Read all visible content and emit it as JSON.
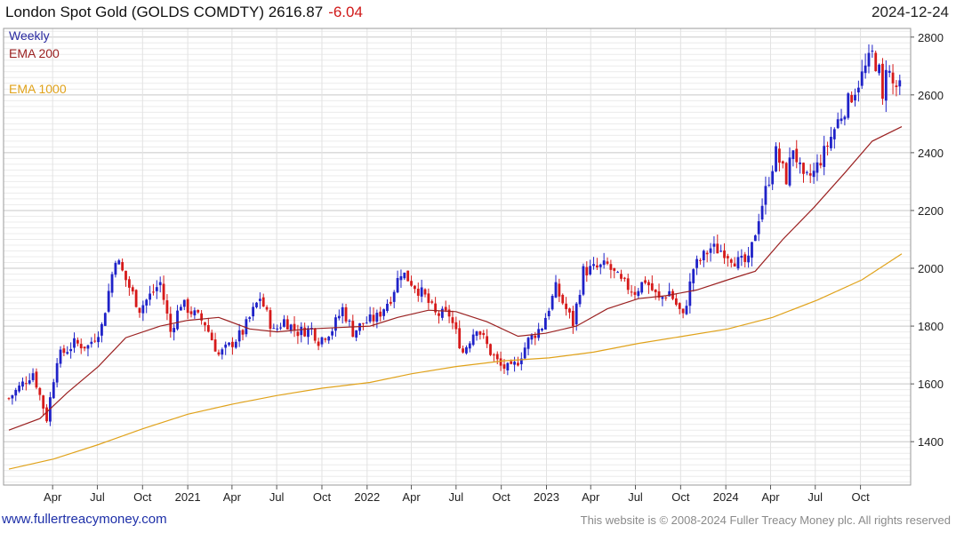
{
  "header": {
    "title": "London Spot Gold (GOLDS COMDTY) 2616.87",
    "change": "-6.04",
    "date": "2024-12-24"
  },
  "legend": {
    "weekly": "Weekly",
    "ema200": "EMA 200",
    "ema1000": "EMA 1000"
  },
  "footer": {
    "link": "www.fullertreacymoney.com",
    "copyright": "This website is © 2008-2024 Fuller Treacy Money plc. All rights reserved"
  },
  "colors": {
    "up": "#1f22c8",
    "down": "#d61a1a",
    "ema200": "#9b2121",
    "ema1000": "#e0a21a",
    "grid": "#d8d8d8"
  },
  "chart_data": {
    "type": "candlestick",
    "title": "London Spot Gold (GOLDS COMDTY) 2616.87",
    "frequency": "Weekly",
    "y_axis": {
      "side": "right",
      "ylim": [
        1250,
        2830
      ],
      "ticks": [
        1400,
        1600,
        1800,
        2000,
        2200,
        2400,
        2600,
        2800
      ]
    },
    "x_axis": {
      "ticks": [
        "Apr",
        "Jul",
        "Oct",
        "2021",
        "Apr",
        "Jul",
        "Oct",
        "2022",
        "Apr",
        "Jul",
        "Oct",
        "2023",
        "Apr",
        "Jul",
        "Oct",
        "2024",
        "Apr",
        "Jul",
        "Oct"
      ],
      "tick_dates": [
        "2020-04-01",
        "2020-07-01",
        "2020-10-01",
        "2021-01-01",
        "2021-04-01",
        "2021-07-01",
        "2021-10-01",
        "2022-01-01",
        "2022-04-01",
        "2022-07-01",
        "2022-10-01",
        "2023-01-01",
        "2023-04-01",
        "2023-07-01",
        "2023-10-01",
        "2024-01-01",
        "2024-04-01",
        "2024-07-01",
        "2024-10-01"
      ],
      "range": [
        "2020-01-03",
        "2024-12-24"
      ]
    },
    "grid": true,
    "legend_position": "top-left",
    "price_path": [
      [
        "2020-01-03",
        1550
      ],
      [
        "2020-02-21",
        1640
      ],
      [
        "2020-03-20",
        1480
      ],
      [
        "2020-04-10",
        1690
      ],
      [
        "2020-05-15",
        1740
      ],
      [
        "2020-06-12",
        1730
      ],
      [
        "2020-07-10",
        1800
      ],
      [
        "2020-08-07",
        2040
      ],
      [
        "2020-08-28",
        1960
      ],
      [
        "2020-09-25",
        1860
      ],
      [
        "2020-11-06",
        1950
      ],
      [
        "2020-11-27",
        1780
      ],
      [
        "2020-12-18",
        1880
      ],
      [
        "2021-01-08",
        1850
      ],
      [
        "2021-02-05",
        1810
      ],
      [
        "2021-03-05",
        1700
      ],
      [
        "2021-03-26",
        1730
      ],
      [
        "2021-04-23",
        1780
      ],
      [
        "2021-05-28",
        1900
      ],
      [
        "2021-06-25",
        1780
      ],
      [
        "2021-07-16",
        1820
      ],
      [
        "2021-08-13",
        1780
      ],
      [
        "2021-09-10",
        1790
      ],
      [
        "2021-09-24",
        1750
      ],
      [
        "2021-10-22",
        1790
      ],
      [
        "2021-11-12",
        1860
      ],
      [
        "2021-12-03",
        1780
      ],
      [
        "2021-12-24",
        1810
      ],
      [
        "2022-01-21",
        1830
      ],
      [
        "2022-02-18",
        1900
      ],
      [
        "2022-03-11",
        1990
      ],
      [
        "2022-04-08",
        1940
      ],
      [
        "2022-04-29",
        1900
      ],
      [
        "2022-05-20",
        1840
      ],
      [
        "2022-06-17",
        1840
      ],
      [
        "2022-07-15",
        1710
      ],
      [
        "2022-08-12",
        1800
      ],
      [
        "2022-09-09",
        1710
      ],
      [
        "2022-09-30",
        1660
      ],
      [
        "2022-10-21",
        1650
      ],
      [
        "2022-11-04",
        1680
      ],
      [
        "2022-11-25",
        1750
      ],
      [
        "2022-12-23",
        1800
      ],
      [
        "2023-01-20",
        1930
      ],
      [
        "2023-02-24",
        1810
      ],
      [
        "2023-03-17",
        1990
      ],
      [
        "2023-04-14",
        2000
      ],
      [
        "2023-05-05",
        2010
      ],
      [
        "2023-06-02",
        1950
      ],
      [
        "2023-06-30",
        1920
      ],
      [
        "2023-07-21",
        1960
      ],
      [
        "2023-08-18",
        1890
      ],
      [
        "2023-09-08",
        1920
      ],
      [
        "2023-10-06",
        1830
      ],
      [
        "2023-10-27",
        2000
      ],
      [
        "2023-12-01",
        2070
      ],
      [
        "2023-12-29",
        2060
      ],
      [
        "2024-01-26",
        2020
      ],
      [
        "2024-02-16",
        2020
      ],
      [
        "2024-03-08",
        2180
      ],
      [
        "2024-04-12",
        2400
      ],
      [
        "2024-05-03",
        2310
      ],
      [
        "2024-05-17",
        2420
      ],
      [
        "2024-06-07",
        2300
      ],
      [
        "2024-06-28",
        2330
      ],
      [
        "2024-07-19",
        2400
      ],
      [
        "2024-08-16",
        2510
      ],
      [
        "2024-09-20",
        2620
      ],
      [
        "2024-10-25",
        2740
      ],
      [
        "2024-11-08",
        2680
      ],
      [
        "2024-11-15",
        2570
      ],
      [
        "2024-11-22",
        2710
      ],
      [
        "2024-12-06",
        2635
      ],
      [
        "2024-12-24",
        2617
      ]
    ],
    "series": [
      {
        "name": "EMA 200",
        "points": [
          [
            "2020-01-03",
            1440
          ],
          [
            "2020-03-06",
            1480
          ],
          [
            "2020-05-01",
            1570
          ],
          [
            "2020-07-03",
            1660
          ],
          [
            "2020-08-28",
            1760
          ],
          [
            "2020-11-06",
            1800
          ],
          [
            "2021-01-01",
            1820
          ],
          [
            "2021-03-05",
            1830
          ],
          [
            "2021-05-07",
            1790
          ],
          [
            "2021-07-02",
            1780
          ],
          [
            "2021-09-03",
            1790
          ],
          [
            "2021-11-05",
            1795
          ],
          [
            "2022-01-07",
            1800
          ],
          [
            "2022-03-04",
            1830
          ],
          [
            "2022-05-06",
            1855
          ],
          [
            "2022-07-01",
            1850
          ],
          [
            "2022-09-02",
            1815
          ],
          [
            "2022-11-04",
            1765
          ],
          [
            "2022-12-30",
            1775
          ],
          [
            "2023-03-03",
            1800
          ],
          [
            "2023-05-05",
            1860
          ],
          [
            "2023-07-07",
            1895
          ],
          [
            "2023-09-01",
            1905
          ],
          [
            "2023-11-03",
            1925
          ],
          [
            "2024-01-05",
            1960
          ],
          [
            "2024-03-01",
            1990
          ],
          [
            "2024-04-26",
            2100
          ],
          [
            "2024-06-28",
            2210
          ],
          [
            "2024-08-30",
            2330
          ],
          [
            "2024-10-25",
            2440
          ],
          [
            "2024-12-24",
            2490
          ]
        ]
      },
      {
        "name": "EMA 1000",
        "points": [
          [
            "2020-01-03",
            1305
          ],
          [
            "2020-04-03",
            1340
          ],
          [
            "2020-07-03",
            1390
          ],
          [
            "2020-10-02",
            1445
          ],
          [
            "2021-01-01",
            1495
          ],
          [
            "2021-04-02",
            1530
          ],
          [
            "2021-07-02",
            1560
          ],
          [
            "2021-10-01",
            1585
          ],
          [
            "2022-01-07",
            1605
          ],
          [
            "2022-04-01",
            1635
          ],
          [
            "2022-07-01",
            1660
          ],
          [
            "2022-10-07",
            1680
          ],
          [
            "2023-01-06",
            1690
          ],
          [
            "2023-04-07",
            1710
          ],
          [
            "2023-07-07",
            1740
          ],
          [
            "2023-10-06",
            1765
          ],
          [
            "2024-01-05",
            1790
          ],
          [
            "2024-04-05",
            1830
          ],
          [
            "2024-07-05",
            1890
          ],
          [
            "2024-10-04",
            1960
          ],
          [
            "2024-12-24",
            2050
          ]
        ]
      }
    ]
  }
}
